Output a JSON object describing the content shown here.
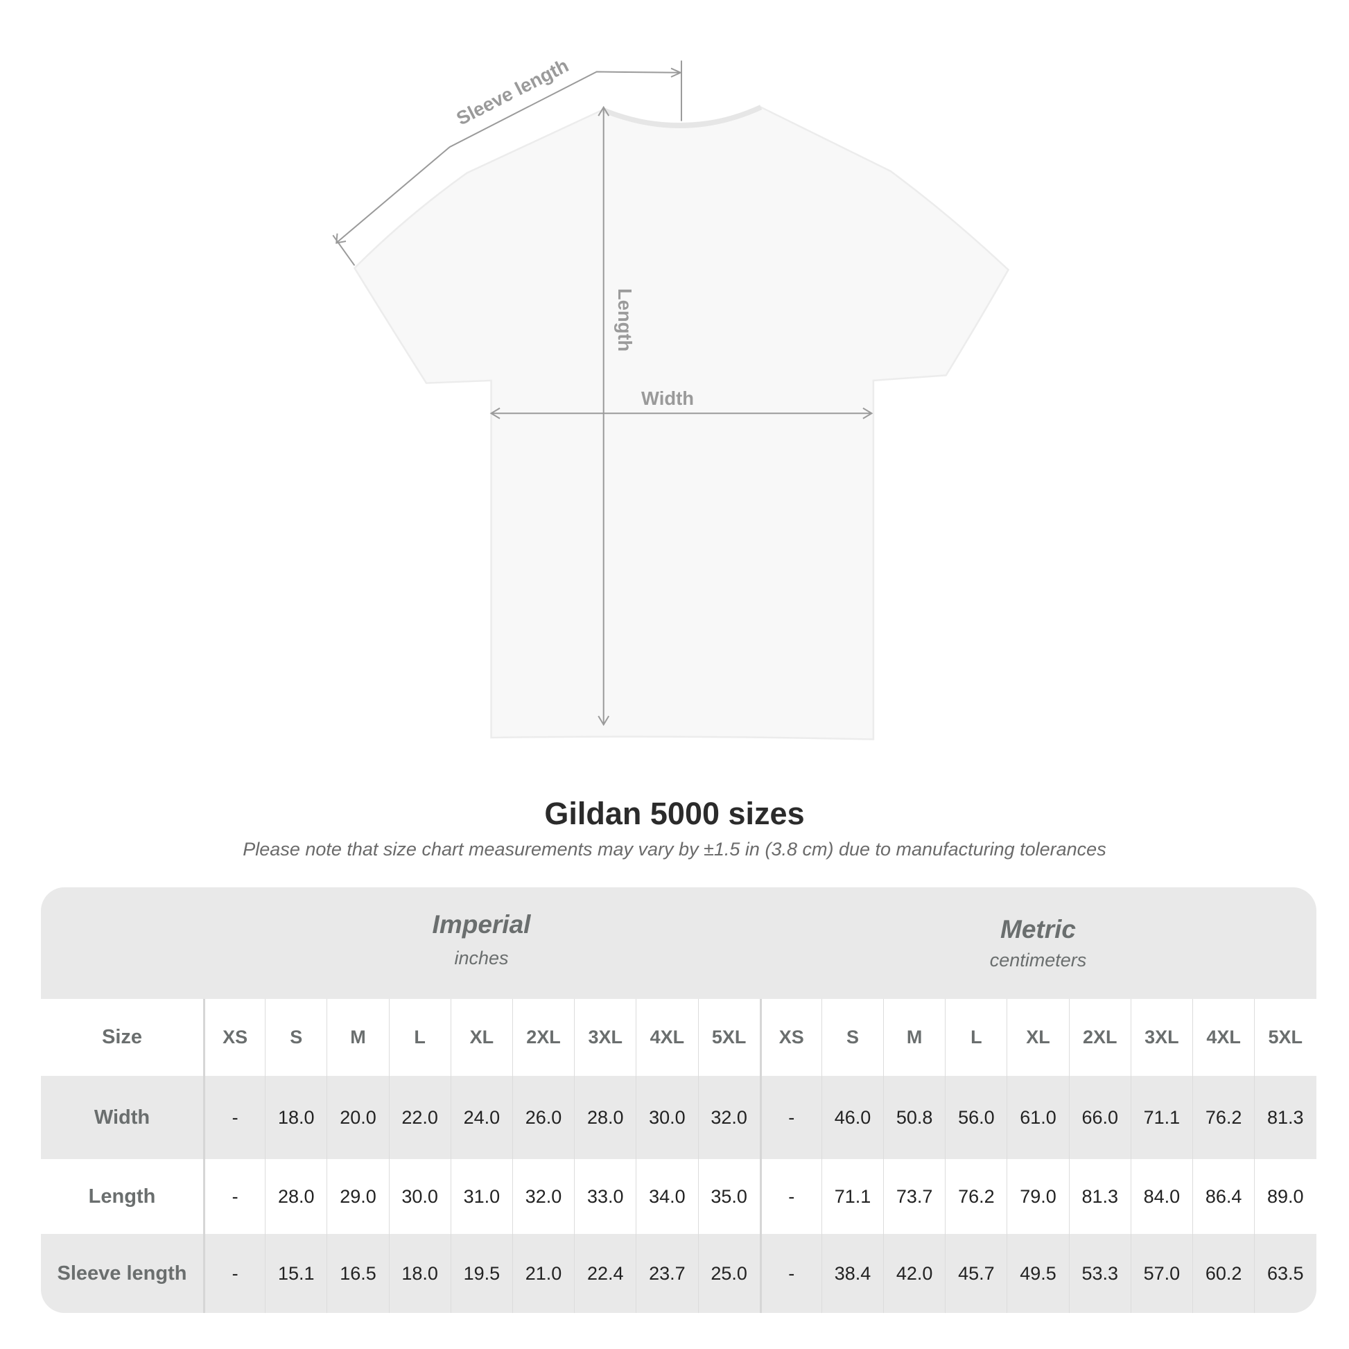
{
  "diagram": {
    "labels": {
      "sleeve": "Sleeve length",
      "length": "Length",
      "width": "Width"
    }
  },
  "title": "Gildan 5000 sizes",
  "note": "Please note that size chart measurements may vary by ±1.5 in (3.8 cm) due to manufacturing tolerances",
  "table": {
    "imperial": {
      "name": "Imperial",
      "unit": "inches"
    },
    "metric": {
      "name": "Metric",
      "unit": "centimeters"
    },
    "header_label": "Size",
    "sizes": [
      "XS",
      "S",
      "M",
      "L",
      "XL",
      "2XL",
      "3XL",
      "4XL",
      "5XL",
      "XS",
      "S",
      "M",
      "L",
      "XL",
      "2XL",
      "3XL",
      "4XL",
      "5XL"
    ],
    "rows": [
      {
        "label": "Width",
        "values": [
          "-",
          "18.0",
          "20.0",
          "22.0",
          "24.0",
          "26.0",
          "28.0",
          "30.0",
          "32.0",
          "-",
          "46.0",
          "50.8",
          "56.0",
          "61.0",
          "66.0",
          "71.1",
          "76.2",
          "81.3"
        ]
      },
      {
        "label": "Length",
        "values": [
          "-",
          "28.0",
          "29.0",
          "30.0",
          "31.0",
          "32.0",
          "33.0",
          "34.0",
          "35.0",
          "-",
          "71.1",
          "73.7",
          "76.2",
          "79.0",
          "81.3",
          "84.0",
          "86.4",
          "89.0"
        ]
      },
      {
        "label": "Sleeve length",
        "values": [
          "-",
          "15.1",
          "16.5",
          "18.0",
          "19.5",
          "21.0",
          "22.4",
          "23.7",
          "25.0",
          "-",
          "38.4",
          "42.0",
          "45.7",
          "49.5",
          "53.3",
          "57.0",
          "60.2",
          "63.5"
        ]
      }
    ]
  }
}
